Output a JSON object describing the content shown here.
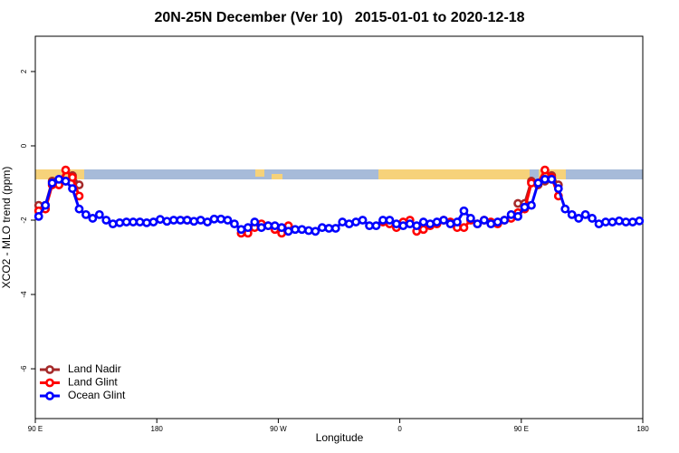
{
  "chart_data": {
    "type": "line",
    "title": "20N-25N December (Ver 10)   2015-01-01 to 2020-12-18",
    "x_label": "Longitude",
    "y_label": "XCO2 - MLO trend (ppm)",
    "xlim": [
      90,
      540
    ],
    "ylim": [
      -7.34,
      2.95
    ],
    "xticks": [
      {
        "value": 90,
        "label": "90 E"
      },
      180,
      {
        "value": 270,
        "label": "90 W"
      },
      {
        "value": 360,
        "label": "0"
      },
      {
        "value": 450,
        "label": "90 E"
      },
      {
        "value": 540,
        "label": "180"
      }
    ],
    "yticks": [
      -6,
      -4,
      -2,
      0,
      2
    ],
    "legend": "bottom-left",
    "x": [
      92.5,
      97.5,
      102.5,
      107.5,
      112.5,
      117.5,
      122.5,
      127.5,
      132.5,
      137.5,
      142.5,
      147.5,
      152.5,
      157.5,
      162.5,
      167.5,
      172.5,
      177.5,
      182.5,
      187.5,
      192.5,
      197.5,
      202.5,
      207.5,
      212.5,
      217.5,
      222.5,
      227.5,
      232.5,
      237.5,
      242.5,
      247.5,
      252.5,
      257.5,
      262.5,
      267.5,
      272.5,
      277.5,
      282.5,
      287.5,
      292.5,
      297.5,
      302.5,
      307.5,
      312.5,
      317.5,
      322.5,
      327.5,
      332.5,
      337.5,
      342.5,
      347.5,
      352.5,
      357.5,
      362.5,
      367.5,
      372.5,
      377.5,
      382.5,
      387.5,
      392.5,
      397.5,
      402.5,
      407.5,
      412.5,
      417.5,
      422.5,
      427.5,
      432.5,
      437.5,
      442.5,
      447.5,
      452.5,
      457.5,
      462.5,
      467.5,
      472.5,
      477.5,
      482.5,
      487.5,
      492.5,
      497.5,
      502.5,
      507.5,
      512.5,
      517.5,
      522.5,
      527.5,
      532.5,
      537.5
    ],
    "series": [
      {
        "name": "Land Nadir",
        "color": "#a52a2a",
        "values": [
          -1.6,
          -1.6,
          -0.95,
          -1.05,
          -0.95,
          -0.8,
          -1.05,
          null,
          null,
          null,
          null,
          null,
          null,
          null,
          null,
          null,
          null,
          null,
          null,
          null,
          null,
          null,
          null,
          null,
          null,
          null,
          null,
          null,
          null,
          null,
          null,
          null,
          null,
          null,
          null,
          null,
          null,
          null,
          null,
          null,
          null,
          null,
          null,
          null,
          null,
          null,
          null,
          null,
          null,
          null,
          null,
          null,
          null,
          null,
          null,
          null,
          null,
          null,
          null,
          null,
          null,
          null,
          null,
          null,
          null,
          null,
          null,
          null,
          null,
          null,
          null,
          -1.55,
          -1.55,
          -0.95,
          -1.05,
          -0.95,
          -0.8,
          -1.05,
          null,
          null,
          null,
          null,
          null,
          null,
          null,
          null,
          null,
          null,
          null,
          null
        ]
      },
      {
        "name": "Land Glint",
        "color": "#ff0000",
        "values": [
          -1.75,
          -1.7,
          -1.05,
          -1.05,
          -0.65,
          -0.85,
          -1.35,
          null,
          null,
          null,
          null,
          null,
          null,
          null,
          null,
          null,
          null,
          null,
          null,
          null,
          null,
          null,
          -2.0,
          null,
          null,
          null,
          null,
          null,
          null,
          null,
          -2.35,
          -2.35,
          -2.2,
          -2.1,
          -2.15,
          -2.25,
          -2.35,
          -2.15,
          null,
          null,
          null,
          null,
          null,
          null,
          null,
          null,
          null,
          null,
          null,
          null,
          null,
          -2.05,
          -2.1,
          -2.2,
          -2.05,
          -2.0,
          -2.3,
          -2.25,
          -2.15,
          -2.1,
          -2.0,
          -2.05,
          -2.2,
          -2.2,
          -2.0,
          -2.1,
          -2.0,
          -2.05,
          -2.1,
          -2.0,
          -1.95,
          -1.8,
          -1.7,
          -1.0,
          -1.0,
          -0.65,
          -0.85,
          -1.35,
          null,
          null,
          null,
          null,
          null,
          null,
          null,
          null,
          null,
          null,
          null,
          null
        ]
      },
      {
        "name": "Ocean Glint",
        "color": "#0000ff",
        "values": [
          -1.9,
          -1.6,
          -1.0,
          -0.9,
          -0.95,
          -1.15,
          -1.7,
          -1.85,
          -1.95,
          -1.85,
          -2.0,
          -2.1,
          -2.07,
          -2.05,
          -2.05,
          -2.05,
          -2.07,
          -2.05,
          -1.98,
          -2.03,
          -2.0,
          -2.0,
          -2.0,
          -2.03,
          -2.0,
          -2.05,
          -1.97,
          -1.97,
          -2.0,
          -2.1,
          -2.25,
          -2.2,
          -2.05,
          -2.2,
          -2.15,
          -2.15,
          -2.2,
          -2.3,
          -2.25,
          -2.25,
          -2.28,
          -2.3,
          -2.2,
          -2.22,
          -2.22,
          -2.05,
          -2.1,
          -2.05,
          -2.0,
          -2.15,
          -2.15,
          -2.0,
          -2.0,
          -2.1,
          -2.15,
          -2.1,
          -2.15,
          -2.05,
          -2.1,
          -2.05,
          -2.0,
          -2.1,
          -2.05,
          -1.75,
          -1.95,
          -2.1,
          -2.0,
          -2.1,
          -2.05,
          -2.0,
          -1.85,
          -1.9,
          -1.65,
          -1.6,
          -1.0,
          -0.9,
          -0.9,
          -1.15,
          -1.7,
          -1.85,
          -1.95,
          -1.85,
          -1.95,
          -2.1,
          -2.05,
          -2.05,
          -2.02,
          -2.05,
          -2.05,
          -2.02
        ]
      }
    ]
  }
}
